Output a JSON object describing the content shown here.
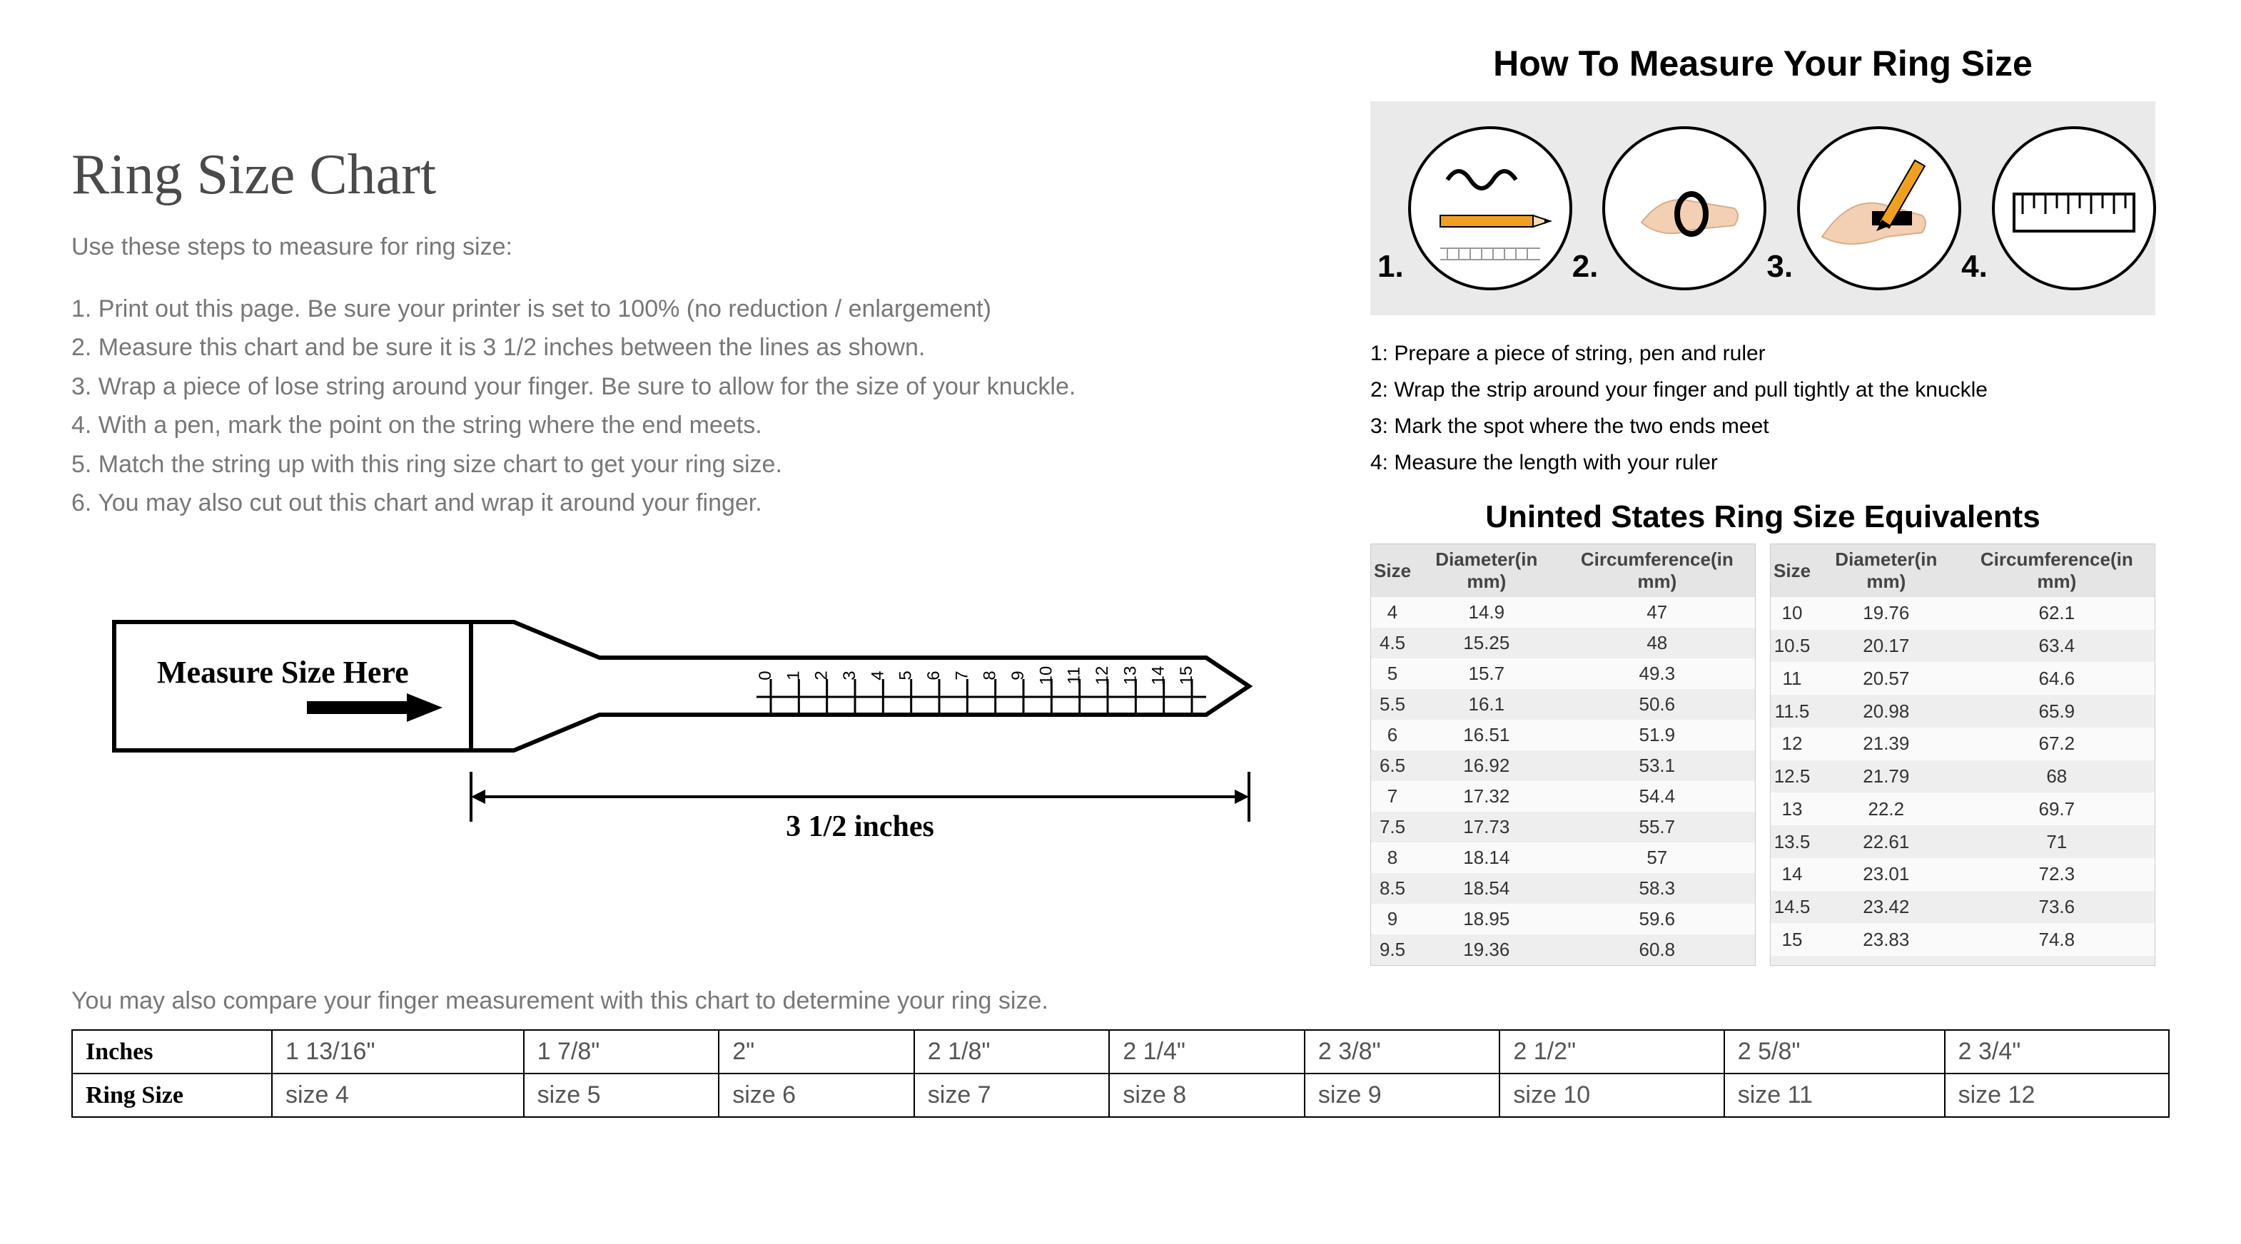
{
  "page_title": "Ring Size Chart",
  "intro": "Use these steps to measure for ring size:",
  "left_steps": [
    "1. Print out this page. Be sure your printer is set to 100% (no reduction / enlargement)",
    "2. Measure this chart and be sure it is 3 1/2 inches between the lines as shown.",
    "3. Wrap a piece of lose string around your finger. Be sure to allow for the size of your knuckle.",
    "4. With a pen, mark the point on the string where the end meets.",
    "5. Match the string up with this ring size chart to get your ring size.",
    "6. You may also cut out this chart and wrap it around your finger."
  ],
  "strip": {
    "label": "Measure Size Here",
    "ticks": [
      "0",
      "1",
      "2",
      "3",
      "4",
      "5",
      "6",
      "7",
      "8",
      "9",
      "10",
      "11",
      "12",
      "13",
      "14",
      "15"
    ],
    "span_label": "3 1/2 inches"
  },
  "compare_note": "You may also compare your finger measurement with this chart to determine your ring size.",
  "bar_table": {
    "row_headers": [
      "Inches",
      "Ring Size"
    ],
    "inches": [
      "1 13/16\"",
      "1 7/8\"",
      "2\"",
      "2 1/8\"",
      "2 1/4\"",
      "2 3/8\"",
      "2 1/2\"",
      "2 5/8\"",
      "2 3/4\""
    ],
    "sizes": [
      "size 4",
      "size 5",
      "size 6",
      "size 7",
      "size 8",
      "size 9",
      "size 10",
      "size 11",
      "size 12"
    ]
  },
  "howto_title": "How To Measure Your Ring Size",
  "step_circles": [
    "1.",
    "2.",
    "3.",
    "4."
  ],
  "howto_steps": [
    "1: Prepare a piece of string, pen and ruler",
    "2: Wrap the strip around your finger and pull tightly at the knuckle",
    "3: Mark the spot where the two ends meet",
    "4: Measure the length with your ruler"
  ],
  "equiv_title": "Uninted States Ring Size Equivalents",
  "equiv_headers": {
    "size": "Size",
    "diameter": "Diameter",
    "diameter_sub": "(in mm)",
    "circ": "Circumference",
    "circ_sub": "(in mm)"
  },
  "equiv_left": [
    [
      "4",
      "14.9",
      "47"
    ],
    [
      "4.5",
      "15.25",
      "48"
    ],
    [
      "5",
      "15.7",
      "49.3"
    ],
    [
      "5.5",
      "16.1",
      "50.6"
    ],
    [
      "6",
      "16.51",
      "51.9"
    ],
    [
      "6.5",
      "16.92",
      "53.1"
    ],
    [
      "7",
      "17.32",
      "54.4"
    ],
    [
      "7.5",
      "17.73",
      "55.7"
    ],
    [
      "8",
      "18.14",
      "57"
    ],
    [
      "8.5",
      "18.54",
      "58.3"
    ],
    [
      "9",
      "18.95",
      "59.6"
    ],
    [
      "9.5",
      "19.36",
      "60.8"
    ]
  ],
  "equiv_right": [
    [
      "10",
      "19.76",
      "62.1"
    ],
    [
      "10.5",
      "20.17",
      "63.4"
    ],
    [
      "11",
      "20.57",
      "64.6"
    ],
    [
      "11.5",
      "20.98",
      "65.9"
    ],
    [
      "12",
      "21.39",
      "67.2"
    ],
    [
      "12.5",
      "21.79",
      "68"
    ],
    [
      "13",
      "22.2",
      "69.7"
    ],
    [
      "13.5",
      "22.61",
      "71"
    ],
    [
      "14",
      "23.01",
      "72.3"
    ],
    [
      "14.5",
      "23.42",
      "73.6"
    ],
    [
      "15",
      "23.83",
      "74.8"
    ],
    [
      "",
      "",
      ""
    ]
  ],
  "colors": {
    "body_text": "#777777",
    "heading": "#4a4a4a",
    "black": "#000000",
    "band_bg": "#eaeaea",
    "table_odd": "#fafafa",
    "table_even": "#eeeeee",
    "pencil": "#f0a020"
  }
}
